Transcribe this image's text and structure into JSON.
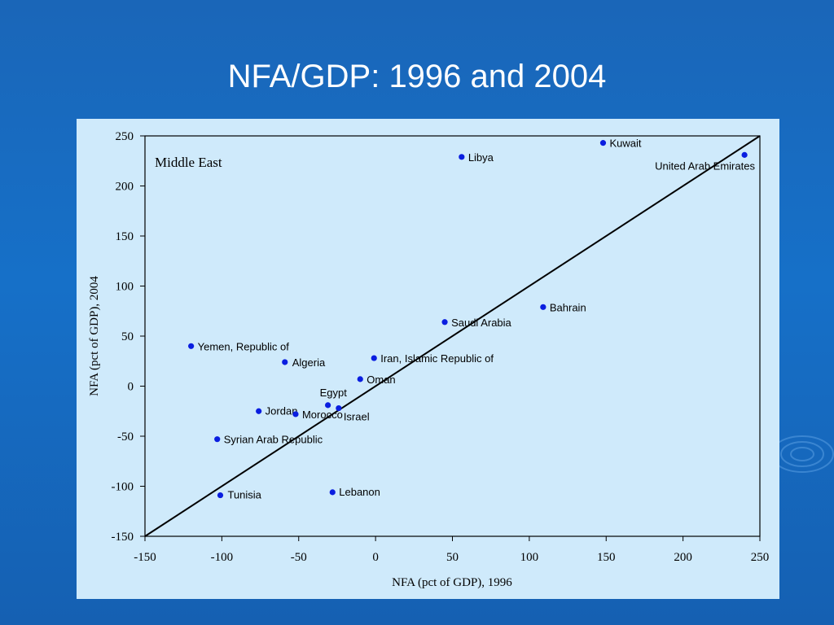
{
  "slide": {
    "title": "NFA/GDP: 1996 and 2004"
  },
  "chart_data": {
    "type": "scatter",
    "annotation": "Middle East",
    "xlabel": "NFA (pct of GDP), 1996",
    "ylabel": "NFA (pct of GDP), 2004",
    "xlim": [
      -150,
      250
    ],
    "ylim": [
      -150,
      250
    ],
    "xticks": [
      -150,
      -100,
      -50,
      0,
      50,
      100,
      150,
      200,
      250
    ],
    "yticks": [
      -150,
      -100,
      -50,
      0,
      50,
      100,
      150,
      200,
      250
    ],
    "reference_line": "45-degree",
    "marker_color": "#0a1ee0",
    "points": [
      {
        "label": "Kuwait",
        "x": 148,
        "y": 243
      },
      {
        "label": "Libya",
        "x": 56,
        "y": 229
      },
      {
        "label": "United Arab Emirates",
        "x": 240,
        "y": 231
      },
      {
        "label": "Bahrain",
        "x": 109,
        "y": 79
      },
      {
        "label": "Saudi Arabia",
        "x": 45,
        "y": 64
      },
      {
        "label": "Iran, Islamic Republic of",
        "x": -1,
        "y": 28
      },
      {
        "label": "Oman",
        "x": -10,
        "y": 7
      },
      {
        "label": "Yemen, Republic of",
        "x": -120,
        "y": 40
      },
      {
        "label": "Algeria",
        "x": -59,
        "y": 24
      },
      {
        "label": "Egypt",
        "x": -31,
        "y": -19
      },
      {
        "label": "Israel",
        "x": -24,
        "y": -22
      },
      {
        "label": "Jordan",
        "x": -76,
        "y": -25
      },
      {
        "label": "Morocco",
        "x": -52,
        "y": -28
      },
      {
        "label": "Syrian Arab Republic",
        "x": -103,
        "y": -53
      },
      {
        "label": "Lebanon",
        "x": -28,
        "y": -106
      },
      {
        "label": "Tunisia",
        "x": -101,
        "y": -109
      }
    ]
  }
}
